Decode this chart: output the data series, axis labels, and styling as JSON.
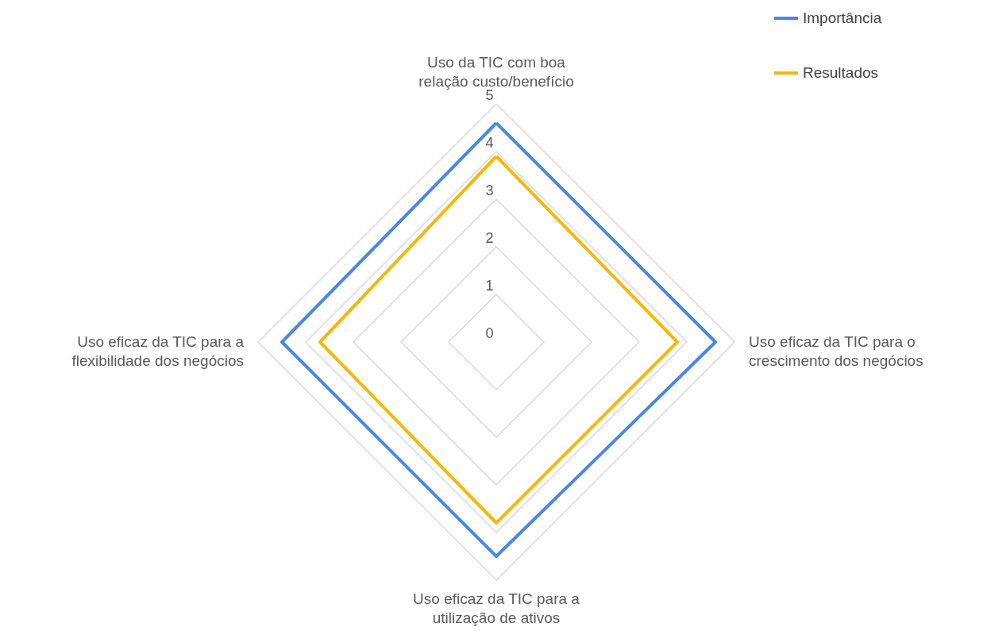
{
  "chart_data": {
    "type": "radar",
    "categories": [
      "Uso da TIC com boa relação custo/benefício",
      "Uso eficaz da TIC para o crescimento dos negócios",
      "Uso eficaz da TIC para a utilização de ativos",
      "Uso eficaz da TIC para a flexibilidade dos negócios"
    ],
    "series": [
      {
        "name": "Importância",
        "color": "#4a86e8",
        "values": [
          4.6,
          4.6,
          4.5,
          4.5
        ]
      },
      {
        "name": "Resultados",
        "color": "#f4b808",
        "values": [
          3.9,
          3.8,
          3.8,
          3.7
        ]
      }
    ],
    "ylim": [
      0,
      5
    ],
    "yticks": [
      0,
      1,
      2,
      3,
      4,
      5
    ],
    "grid": true,
    "legend": "top right"
  }
}
